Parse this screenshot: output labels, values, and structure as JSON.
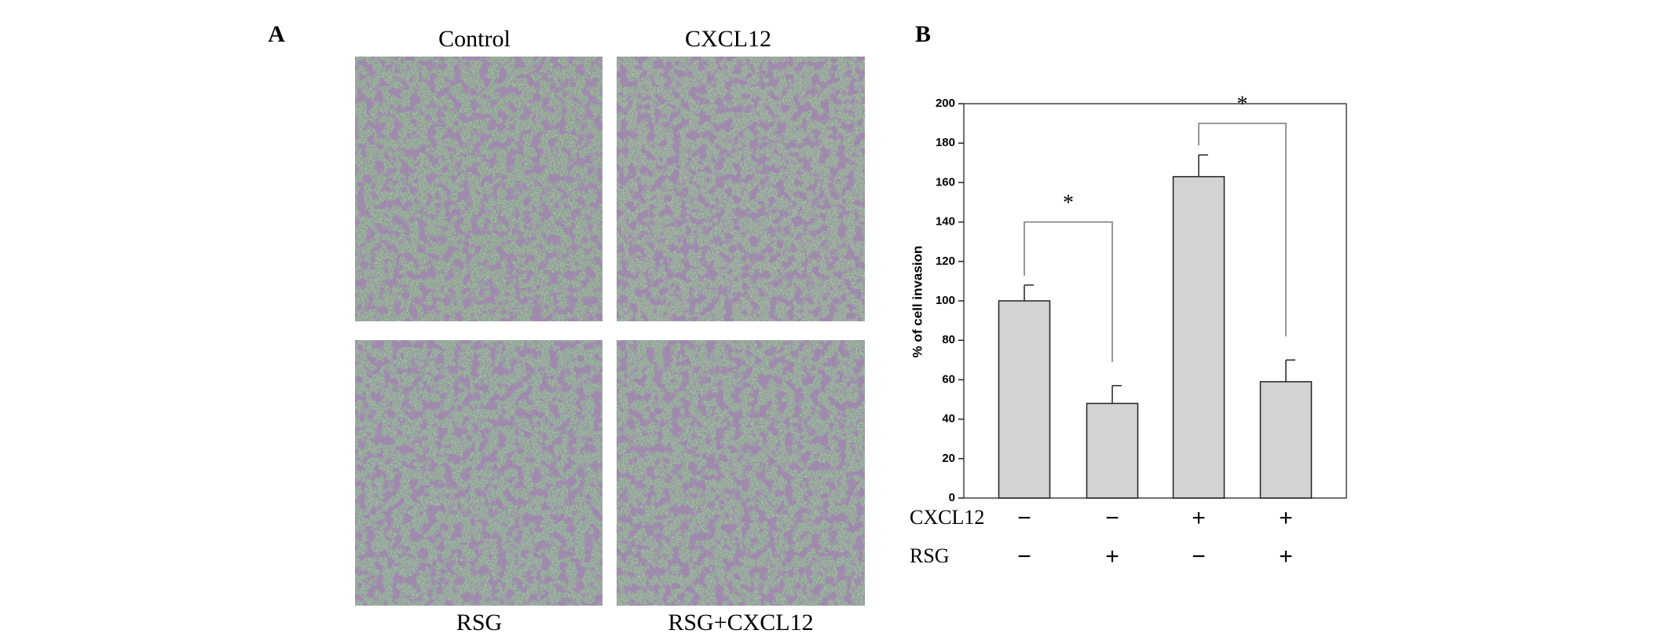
{
  "panels": {
    "a": {
      "label": "A",
      "captions": [
        "Control",
        "CXCL12",
        "RSG",
        "RSG+CXCL12"
      ]
    },
    "b": {
      "label": "B"
    }
  },
  "chart_data": {
    "type": "bar",
    "y_label": "% of cell invasion",
    "categories": [
      null,
      null,
      null,
      null
    ],
    "values": [
      100,
      48,
      163,
      59
    ],
    "errors": [
      8,
      9,
      11,
      11
    ],
    "color": "#d3d3d3",
    "ylim": [
      0,
      200
    ],
    "yticks": [
      0,
      20,
      40,
      60,
      80,
      100,
      120,
      140,
      160,
      180,
      200
    ],
    "conditions": [
      {
        "label": "CXCL12",
        "signs": [
          "−",
          "−",
          "+",
          "+"
        ]
      },
      {
        "label": "RSG",
        "signs": [
          "−",
          "+",
          "−",
          "+"
        ]
      }
    ],
    "significance": [
      {
        "label": "*",
        "pair": [
          0,
          1
        ],
        "y": 140
      },
      {
        "label": "*",
        "pair": [
          2,
          3
        ],
        "y": 190
      }
    ]
  }
}
